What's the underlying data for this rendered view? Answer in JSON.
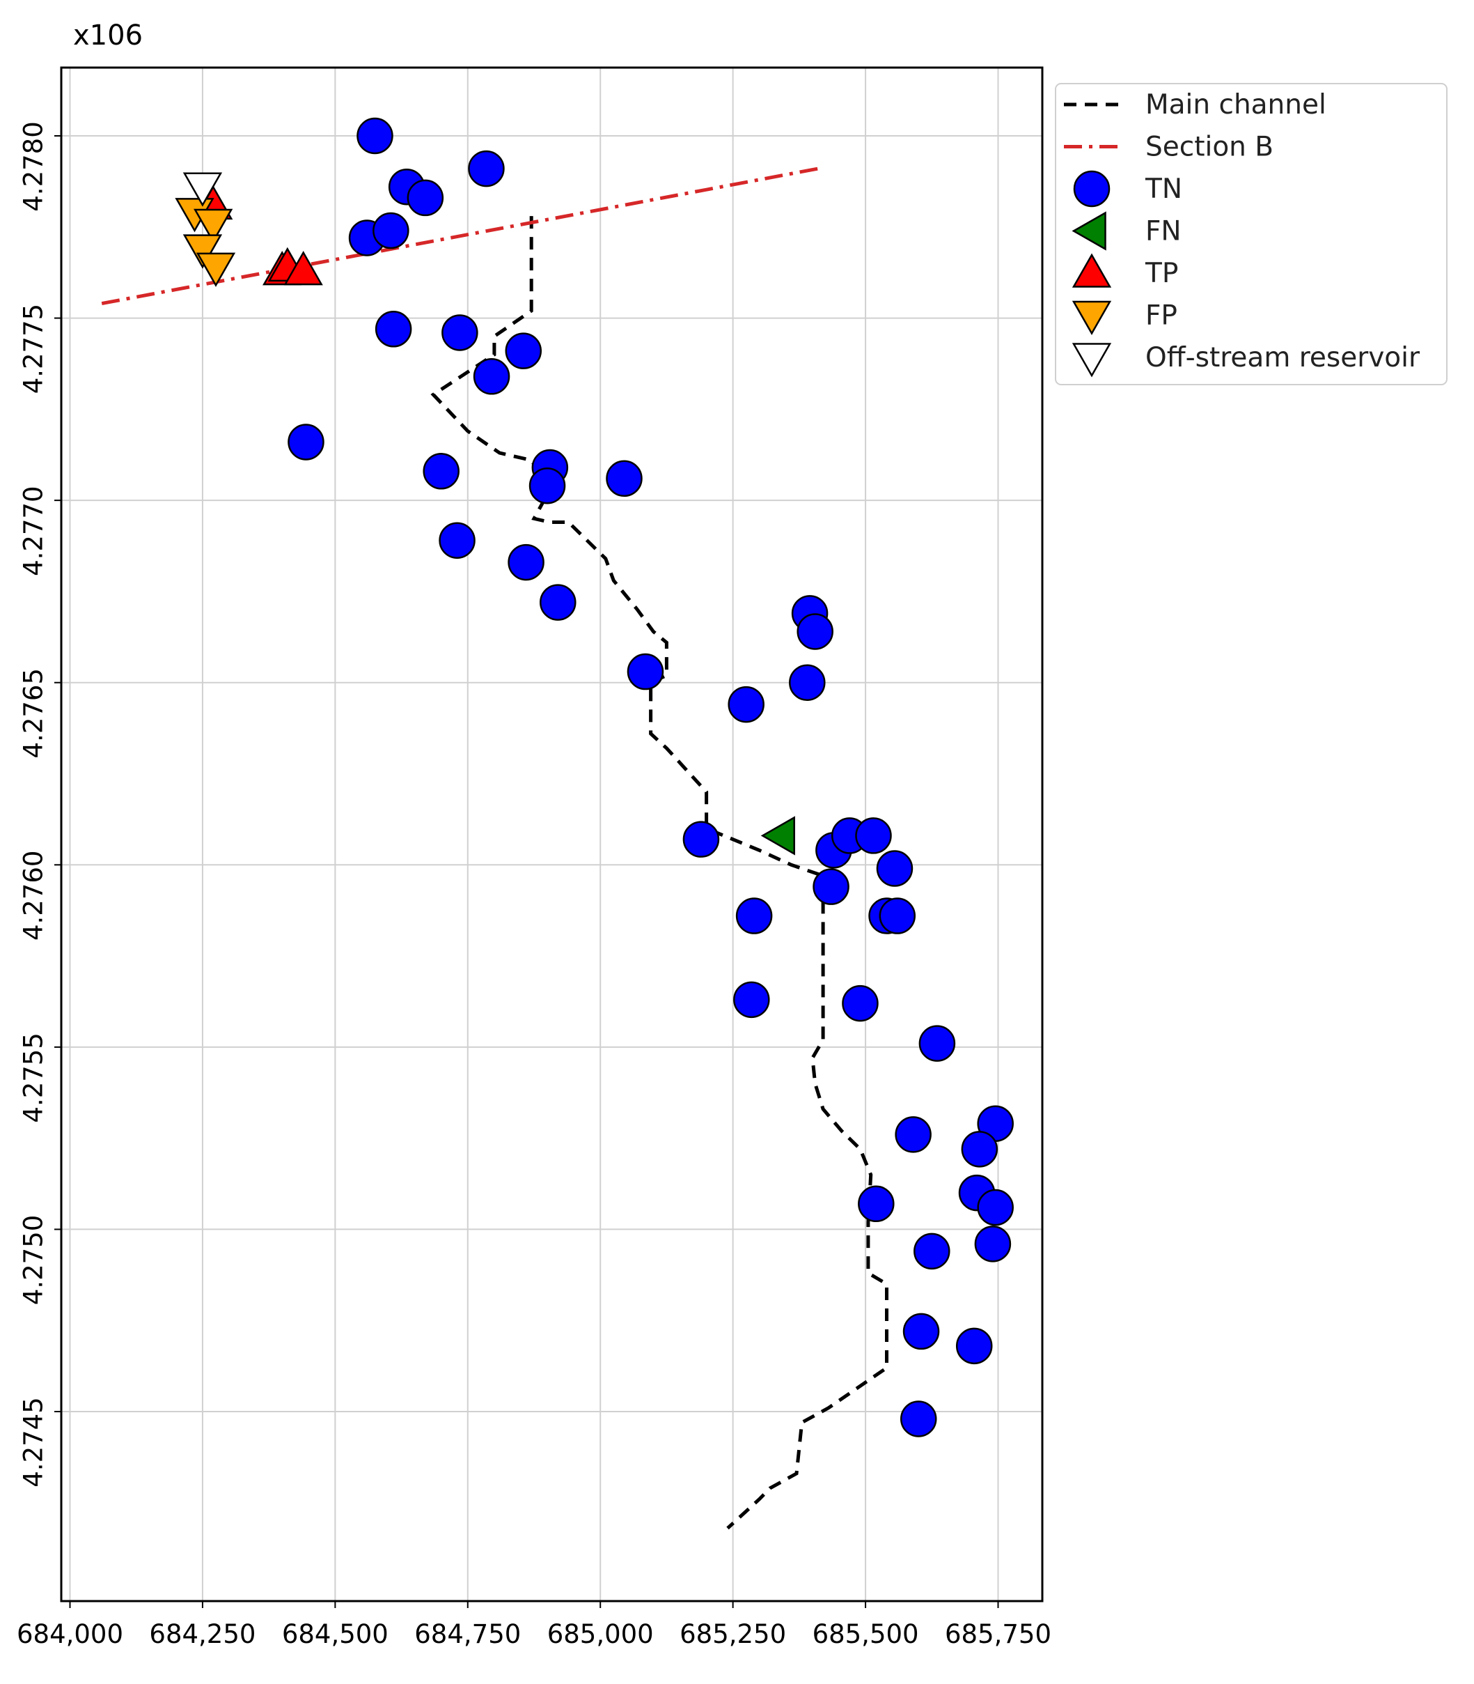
{
  "chart_data": {
    "type": "scatter",
    "title": "",
    "xlabel": "",
    "ylabel": "",
    "y_offset_label": "x106",
    "xlim": [
      683980,
      685820
    ],
    "ylim": [
      4274000,
      4278200
    ],
    "grid": true,
    "legend_position": "right-outside-top",
    "x_ticks": [
      684000,
      684250,
      684500,
      684750,
      685000,
      685250,
      685500,
      685750
    ],
    "x_tick_labels": [
      "684,000",
      "684,250",
      "684,500",
      "684,750",
      "685,000",
      "685,250",
      "685,500",
      "685,750"
    ],
    "y_ticks": [
      4274500,
      4275000,
      4275500,
      4276000,
      4276500,
      4277000,
      4277500,
      4278000
    ],
    "y_tick_labels": [
      "4.2745",
      "4.2750",
      "4.2755",
      "4.2760",
      "4.2765",
      "4.2770",
      "4.2775",
      "4.2780"
    ],
    "legend": [
      {
        "key": "main_channel",
        "label": "Main channel"
      },
      {
        "key": "section_b",
        "label": "Section B"
      },
      {
        "key": "tn",
        "label": "TN"
      },
      {
        "key": "fn",
        "label": "FN"
      },
      {
        "key": "tp",
        "label": "TP"
      },
      {
        "key": "fp",
        "label": "FP"
      },
      {
        "key": "off_stream",
        "label": "Off-stream reservoir"
      }
    ],
    "colors": {
      "tn": "#0000ff",
      "fn": "#008000",
      "tp": "#ff0000",
      "fp": "#ffa500",
      "off_stream": "#ffffff",
      "section_b": "#d62728",
      "main_channel": "#000000",
      "grid": "#d0d0d0"
    },
    "series": [
      {
        "name": "Main channel",
        "key": "main_channel",
        "kind": "line",
        "style": "dashed",
        "points": [
          [
            684870,
            4277780
          ],
          [
            684870,
            4277520
          ],
          [
            684800,
            4277450
          ],
          [
            684800,
            4277400
          ],
          [
            684685,
            4277290
          ],
          [
            684750,
            4277190
          ],
          [
            684810,
            4277130
          ],
          [
            684870,
            4277110
          ],
          [
            684905,
            4277030
          ],
          [
            684875,
            4276950
          ],
          [
            684905,
            4276940
          ],
          [
            684940,
            4276940
          ],
          [
            685010,
            4276840
          ],
          [
            685025,
            4276780
          ],
          [
            685070,
            4276700
          ],
          [
            685100,
            4276640
          ],
          [
            685125,
            4276610
          ],
          [
            685125,
            4276520
          ],
          [
            685095,
            4276500
          ],
          [
            685095,
            4276360
          ],
          [
            685125,
            4276320
          ],
          [
            685150,
            4276280
          ],
          [
            685200,
            4276200
          ],
          [
            685200,
            4276100
          ],
          [
            685250,
            4276070
          ],
          [
            685300,
            4276040
          ],
          [
            685360,
            4276000
          ],
          [
            685420,
            4275970
          ],
          [
            685420,
            4275760
          ],
          [
            685420,
            4275520
          ],
          [
            685400,
            4275470
          ],
          [
            685405,
            4275400
          ],
          [
            685420,
            4275330
          ],
          [
            685455,
            4275270
          ],
          [
            685490,
            4275220
          ],
          [
            685510,
            4275150
          ],
          [
            685505,
            4275020
          ],
          [
            685505,
            4274880
          ],
          [
            685540,
            4274850
          ],
          [
            685540,
            4274620
          ],
          [
            685500,
            4274580
          ],
          [
            685430,
            4274510
          ],
          [
            685380,
            4274470
          ],
          [
            685370,
            4274330
          ],
          [
            685320,
            4274290
          ],
          [
            685300,
            4274260
          ],
          [
            685240,
            4274180
          ]
        ]
      },
      {
        "name": "Section B",
        "key": "section_b",
        "kind": "line",
        "style": "dashdot",
        "points": [
          [
            684060,
            4277540
          ],
          [
            685410,
            4277910
          ]
        ]
      },
      {
        "name": "TN",
        "key": "tn",
        "kind": "marker",
        "marker": "circle",
        "points": [
          [
            684575,
            4278000
          ],
          [
            684635,
            4277860
          ],
          [
            684670,
            4277830
          ],
          [
            684785,
            4277910
          ],
          [
            684560,
            4277720
          ],
          [
            684605,
            4277740
          ],
          [
            684610,
            4277470
          ],
          [
            684735,
            4277460
          ],
          [
            684795,
            4277340
          ],
          [
            684855,
            4277410
          ],
          [
            684445,
            4277160
          ],
          [
            684700,
            4277080
          ],
          [
            684905,
            4277090
          ],
          [
            684900,
            4277040
          ],
          [
            685045,
            4277060
          ],
          [
            684730,
            4276890
          ],
          [
            684860,
            4276830
          ],
          [
            684920,
            4276720
          ],
          [
            685085,
            4276530
          ],
          [
            685395,
            4276690
          ],
          [
            685405,
            4276640
          ],
          [
            685390,
            4276500
          ],
          [
            685275,
            4276440
          ],
          [
            685190,
            4276070
          ],
          [
            685440,
            4276040
          ],
          [
            685470,
            4276080
          ],
          [
            685515,
            4276080
          ],
          [
            685555,
            4275990
          ],
          [
            685435,
            4275940
          ],
          [
            685290,
            4275860
          ],
          [
            685540,
            4275860
          ],
          [
            685560,
            4275860
          ],
          [
            685285,
            4275630
          ],
          [
            685490,
            4275620
          ],
          [
            685635,
            4275510
          ],
          [
            685590,
            4275260
          ],
          [
            685745,
            4275290
          ],
          [
            685715,
            4275220
          ],
          [
            685710,
            4275100
          ],
          [
            685745,
            4275060
          ],
          [
            685520,
            4275070
          ],
          [
            685625,
            4274940
          ],
          [
            685740,
            4274960
          ],
          [
            685605,
            4274720
          ],
          [
            685705,
            4274680
          ],
          [
            685600,
            4274480
          ]
        ]
      },
      {
        "name": "FN",
        "key": "fn",
        "kind": "marker",
        "marker": "triangle-left",
        "points": [
          [
            685340,
            4276080
          ]
        ]
      },
      {
        "name": "TP",
        "key": "tp",
        "kind": "marker",
        "marker": "triangle-up",
        "points": [
          [
            684270,
            4277810
          ],
          [
            684400,
            4277630
          ],
          [
            684410,
            4277640
          ],
          [
            684440,
            4277630
          ]
        ]
      },
      {
        "name": "FP",
        "key": "fp",
        "kind": "marker",
        "marker": "triangle-down",
        "points": [
          [
            684235,
            4277790
          ],
          [
            684270,
            4277760
          ],
          [
            684250,
            4277690
          ],
          [
            684275,
            4277640
          ]
        ]
      },
      {
        "name": "Off-stream reservoir",
        "key": "off_stream",
        "kind": "marker",
        "marker": "triangle-down",
        "points": [
          [
            684250,
            4277860
          ]
        ]
      }
    ]
  }
}
